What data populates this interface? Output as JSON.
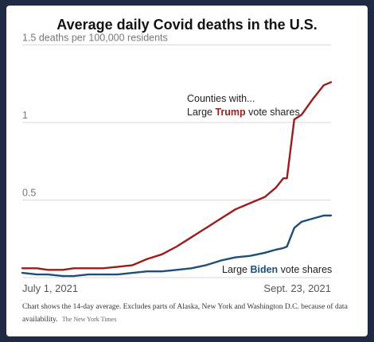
{
  "chart_data": {
    "type": "line",
    "title": "Average daily Covid deaths in the U.S.",
    "ylabel": "deaths per 100,000 residents",
    "y_ticks": [
      {
        "value": 1.5,
        "label": "1.5 deaths per 100,000 residents"
      },
      {
        "value": 1.0,
        "label": "1"
      },
      {
        "value": 0.5,
        "label": "0.5"
      }
    ],
    "ylim": [
      0,
      1.6
    ],
    "x_start": "2021-07-01",
    "x_end": "2021-09-23",
    "x_tick_labels": [
      "July 1, 2021",
      "Sept. 23, 2021"
    ],
    "grid": true,
    "legend_title": "Counties with...",
    "series": [
      {
        "name": "Large Trump vote shares",
        "label_prefix": "Large ",
        "label_highlight": "Trump",
        "label_suffix": " vote shares",
        "color": "#9b1c1c",
        "x": [
          "2021-07-01",
          "2021-07-05",
          "2021-07-08",
          "2021-07-12",
          "2021-07-15",
          "2021-07-19",
          "2021-07-23",
          "2021-07-27",
          "2021-07-31",
          "2021-08-04",
          "2021-08-08",
          "2021-08-12",
          "2021-08-16",
          "2021-08-20",
          "2021-08-24",
          "2021-08-28",
          "2021-09-01",
          "2021-09-05",
          "2021-09-08",
          "2021-09-10",
          "2021-09-11",
          "2021-09-13",
          "2021-09-15",
          "2021-09-18",
          "2021-09-21",
          "2021-09-23"
        ],
        "y": [
          0.06,
          0.06,
          0.05,
          0.05,
          0.06,
          0.06,
          0.06,
          0.07,
          0.08,
          0.12,
          0.15,
          0.2,
          0.26,
          0.32,
          0.38,
          0.44,
          0.48,
          0.52,
          0.58,
          0.64,
          0.64,
          1.02,
          1.05,
          1.15,
          1.24,
          1.26
        ]
      },
      {
        "name": "Large Biden vote shares",
        "label_prefix": "Large ",
        "label_highlight": "Biden",
        "label_suffix": " vote shares",
        "color": "#1f4e79",
        "x": [
          "2021-07-01",
          "2021-07-05",
          "2021-07-08",
          "2021-07-12",
          "2021-07-15",
          "2021-07-19",
          "2021-07-23",
          "2021-07-27",
          "2021-07-31",
          "2021-08-04",
          "2021-08-08",
          "2021-08-12",
          "2021-08-16",
          "2021-08-20",
          "2021-08-24",
          "2021-08-28",
          "2021-09-01",
          "2021-09-05",
          "2021-09-08",
          "2021-09-10",
          "2021-09-11",
          "2021-09-13",
          "2021-09-15",
          "2021-09-18",
          "2021-09-21",
          "2021-09-23"
        ],
        "y": [
          0.03,
          0.02,
          0.02,
          0.01,
          0.01,
          0.02,
          0.02,
          0.02,
          0.03,
          0.04,
          0.04,
          0.05,
          0.06,
          0.08,
          0.11,
          0.13,
          0.14,
          0.16,
          0.18,
          0.19,
          0.2,
          0.32,
          0.36,
          0.38,
          0.4,
          0.4
        ]
      }
    ]
  },
  "footnote": {
    "text": "Chart shows the 14-day average. Excludes parts of Alaska, New York and Washington D.C. because of data availability.",
    "credit": "The New York Times"
  }
}
